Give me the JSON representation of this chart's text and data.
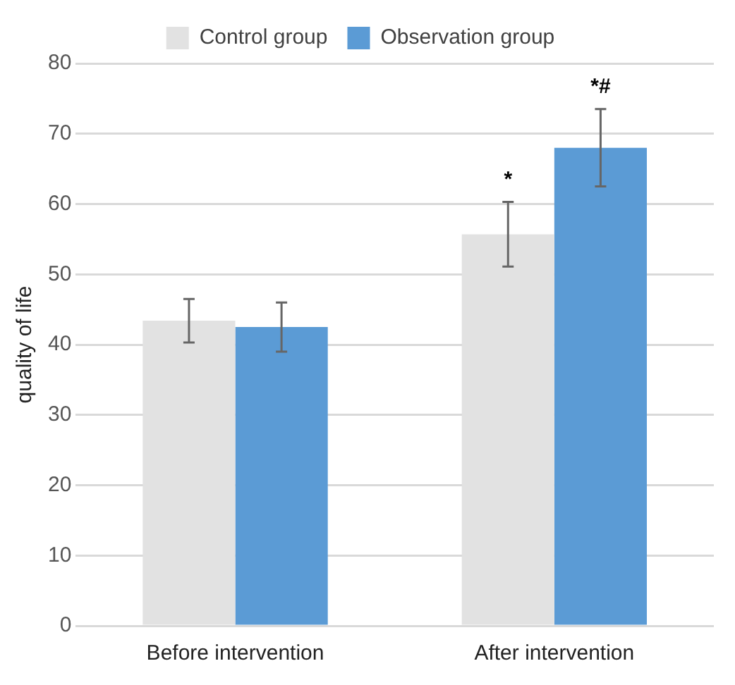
{
  "chart_data": {
    "type": "bar",
    "ylabel": "quality of life",
    "categories": [
      "Before intervention",
      "After intervention"
    ],
    "series": [
      {
        "name": "Control group",
        "color": "#e2e2e2",
        "values": [
          43.4,
          55.7
        ],
        "errors": [
          3.1,
          4.6
        ]
      },
      {
        "name": "Observation group",
        "color": "#5b9bd5",
        "values": [
          42.5,
          68.0
        ],
        "errors": [
          3.5,
          5.5
        ]
      }
    ],
    "ylim": [
      0,
      80
    ],
    "yticks": [
      0,
      10,
      20,
      30,
      40,
      50,
      60,
      70,
      80
    ],
    "grid": "y",
    "legend": "top",
    "annotations": [
      {
        "text": "*",
        "x": "After intervention",
        "y": 55.7
      },
      {
        "text": "*#",
        "x": "After intervention",
        "y": 68.0
      }
    ]
  }
}
